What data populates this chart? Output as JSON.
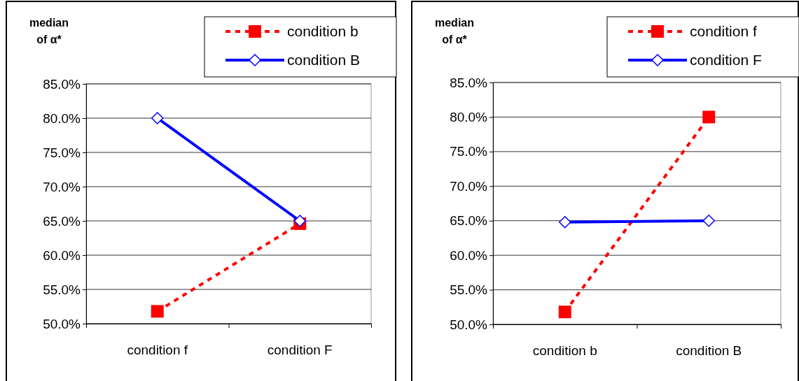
{
  "chart_data": [
    {
      "type": "line",
      "ylabel": "median of α*",
      "categories": [
        "condition f",
        "condition F"
      ],
      "series": [
        {
          "name": "condition b",
          "color": "#ff0000",
          "values": [
            51.8,
            64.6
          ],
          "marker": "square",
          "line_style": "dotted"
        },
        {
          "name": "condition B",
          "color": "#0000ff",
          "values": [
            80.0,
            65.0
          ],
          "marker": "diamond",
          "line_style": "solid"
        }
      ],
      "ylim": [
        50,
        85
      ],
      "yticks": [
        {
          "value": 50,
          "label": "50.0%"
        },
        {
          "value": 55,
          "label": "55.0%"
        },
        {
          "value": 60,
          "label": "60.0%"
        },
        {
          "value": 65,
          "label": "65.0%"
        },
        {
          "value": 70,
          "label": "70.0%"
        },
        {
          "value": 75,
          "label": "75.0%"
        },
        {
          "value": 80,
          "label": "80.0%"
        },
        {
          "value": 85,
          "label": "85.0%"
        }
      ],
      "grid": "y",
      "legend": "top right"
    },
    {
      "type": "line",
      "ylabel": "median of α*",
      "categories": [
        "condition b",
        "condition B"
      ],
      "series": [
        {
          "name": "condition f",
          "color": "#ff0000",
          "values": [
            51.8,
            80.0
          ],
          "marker": "square",
          "line_style": "dotted"
        },
        {
          "name": "condition F",
          "color": "#0000ff",
          "values": [
            64.8,
            65.0
          ],
          "marker": "diamond",
          "line_style": "solid"
        }
      ],
      "ylim": [
        50,
        85
      ],
      "yticks": [
        {
          "value": 50,
          "label": "50.0%"
        },
        {
          "value": 55,
          "label": "55.0%"
        },
        {
          "value": 60,
          "label": "60.0%"
        },
        {
          "value": 65,
          "label": "65.0%"
        },
        {
          "value": 70,
          "label": "70.0%"
        },
        {
          "value": 75,
          "label": "75.0%"
        },
        {
          "value": 80,
          "label": "80.0%"
        },
        {
          "value": 85,
          "label": "85.0%"
        }
      ],
      "grid": "y",
      "legend": "top right"
    }
  ]
}
